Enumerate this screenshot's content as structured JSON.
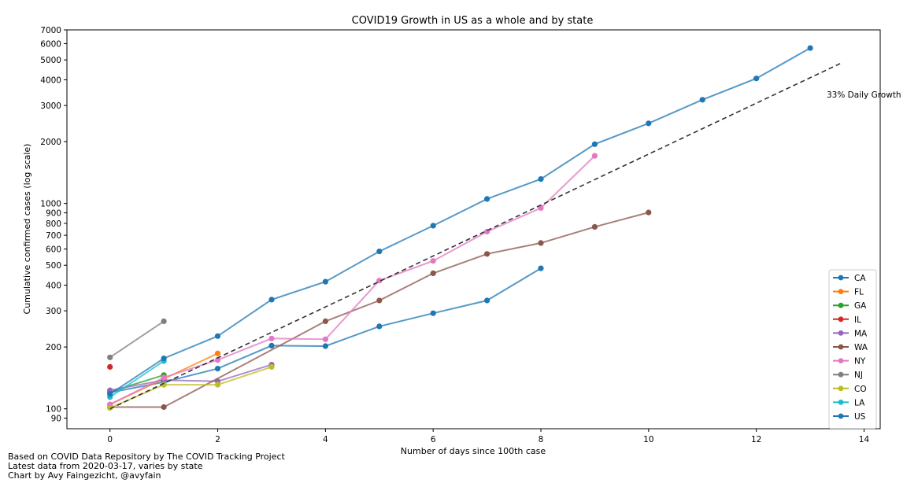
{
  "chart_data": {
    "type": "line",
    "title": "COVID19 Growth in US as a whole and by state",
    "xlabel": "Number of days since 100th case",
    "ylabel": "Cumulative confirmed cases (log scale)",
    "y_scale": "log",
    "xlim": [
      -0.8,
      14.3
    ],
    "ylim": [
      80,
      7000
    ],
    "xticks": [
      0,
      2,
      4,
      6,
      8,
      10,
      12,
      14
    ],
    "yticks": [
      90,
      100,
      200,
      300,
      400,
      500,
      600,
      700,
      800,
      900,
      1000,
      2000,
      3000,
      4000,
      5000,
      6000,
      7000
    ],
    "grid": false,
    "legend_position": "lower right",
    "series": [
      {
        "name": "CA",
        "color": "#1f77b4",
        "x": [
          0,
          1,
          2,
          3,
          4,
          5,
          6,
          7,
          8
        ],
        "values": [
          120,
          135,
          157,
          203,
          202,
          252,
          292,
          337,
          483
        ]
      },
      {
        "name": "FL",
        "color": "#ff7f0e",
        "x": [
          0,
          1,
          2
        ],
        "values": [
          105,
          140,
          186
        ]
      },
      {
        "name": "GA",
        "color": "#2ca02c",
        "x": [
          0,
          1
        ],
        "values": [
          121,
          146
        ]
      },
      {
        "name": "IL",
        "color": "#d62728",
        "x": [
          0
        ],
        "values": [
          160
        ]
      },
      {
        "name": "MA",
        "color": "#9467bd",
        "x": [
          0,
          1,
          2,
          3
        ],
        "values": [
          123,
          138,
          136,
          164
        ]
      },
      {
        "name": "WA",
        "color": "#8c564b",
        "x": [
          0,
          1,
          4,
          5,
          6,
          7,
          8,
          9,
          10
        ],
        "values": [
          102,
          102,
          267,
          337,
          457,
          568,
          642,
          769,
          904
        ]
      },
      {
        "name": "NY",
        "color": "#e377c2",
        "x": [
          0,
          1,
          2,
          3,
          4,
          5,
          6,
          7,
          8,
          9
        ],
        "values": [
          105,
          142,
          173,
          220,
          218,
          421,
          525,
          729,
          950,
          1706
        ]
      },
      {
        "name": "NJ",
        "color": "#7f7f7f",
        "x": [
          0,
          1
        ],
        "values": [
          178,
          267
        ]
      },
      {
        "name": "CO",
        "color": "#bcbd22",
        "x": [
          0,
          1,
          2,
          3
        ],
        "values": [
          101,
          131,
          131,
          160
        ]
      },
      {
        "name": "LA",
        "color": "#17becf",
        "x": [
          0,
          1
        ],
        "values": [
          114,
          171
        ]
      },
      {
        "name": "US",
        "color": "#1f77b4",
        "x": [
          0,
          1,
          2,
          3,
          4,
          5,
          6,
          7,
          8,
          9,
          10,
          11,
          12,
          13
        ],
        "values": [
          118,
          176,
          226,
          340,
          416,
          584,
          779,
          1052,
          1315,
          1944,
          2455,
          3200,
          4063,
          5710
        ]
      }
    ],
    "reference_line": {
      "label": "33% Daily Growth",
      "x": [
        0,
        13.6
      ],
      "values": [
        100,
        4860
      ],
      "color": "#333333",
      "style": "dashed"
    },
    "annotations": [
      "33% Daily Growth"
    ]
  },
  "footer": {
    "line1": "Based on COVID Data Repository by The COVID Tracking Project",
    "line2": "Latest data from 2020-03-17, varies by state",
    "line3": "Chart by Avy Faingezicht, @avyfain"
  }
}
